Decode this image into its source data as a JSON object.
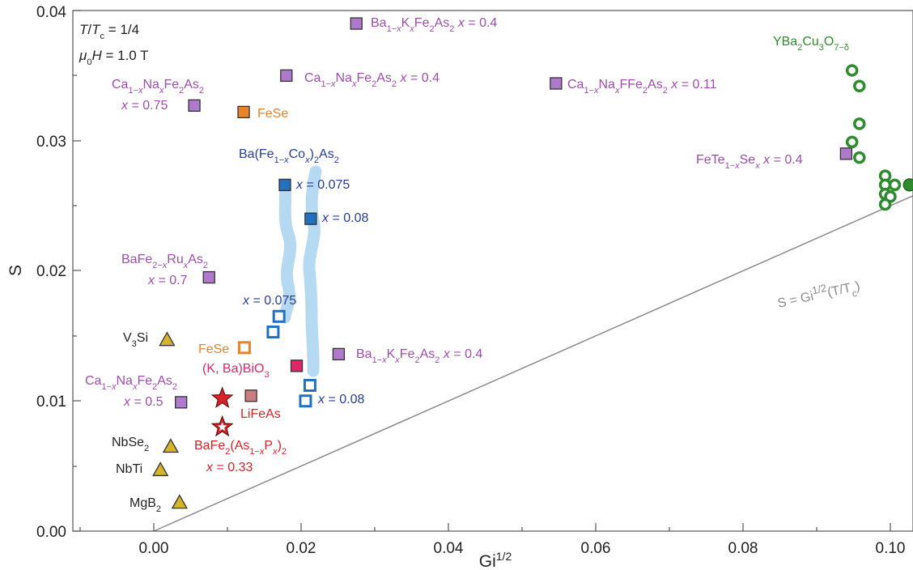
{
  "chart_data": {
    "type": "scatter",
    "xlabel": "Gi^1/2",
    "ylabel": "S",
    "xlim": [
      -0.011,
      0.104
    ],
    "ylim": [
      0.0,
      0.04
    ],
    "x_ticks": [
      0.0,
      0.02,
      0.04,
      0.06,
      0.08,
      0.1
    ],
    "x_tick_labels": [
      "0.00",
      "0.02",
      "0.04",
      "0.06",
      "0.08",
      "0.10"
    ],
    "y_ticks": [
      0.0,
      0.01,
      0.02,
      0.03,
      0.04
    ],
    "y_tick_labels": [
      "0.00",
      "0.01",
      "0.02",
      "0.03",
      "0.04"
    ],
    "grid": false,
    "conditions": [
      "T/Tc = 1/4",
      "μ0H = 1.0 T"
    ],
    "reference_line": {
      "label": "S = Gi^1/2(T/Tc)",
      "x": [
        0.0,
        0.104
      ],
      "y": [
        0.0,
        0.026
      ],
      "color": "#8a8a8a"
    },
    "colors": {
      "purple": "#b07acc",
      "orange": "#e8832a",
      "blue": "#2370c0",
      "red": "#d8222a",
      "green": "#2e8b2e",
      "yellow": "#d4b42a",
      "pink": "#e0256a",
      "salmon": "#c97f80",
      "band": "#a8d3ee"
    },
    "series": [
      {
        "name": "Ba1-xKxFe2As2 x = 0.4",
        "marker": "square",
        "color": "#b07acc",
        "points": [
          {
            "x": 0.0275,
            "y": 0.039
          },
          {
            "x": 0.0251,
            "y": 0.0136
          }
        ]
      },
      {
        "name": "Ca1-xNaxFe2As2 x = 0.4",
        "marker": "square",
        "color": "#b07acc",
        "points": [
          {
            "x": 0.018,
            "y": 0.035
          }
        ]
      },
      {
        "name": "Ca1-xNaxFFe2As2 x = 0.11",
        "marker": "square",
        "color": "#b07acc",
        "points": [
          {
            "x": 0.0546,
            "y": 0.0344
          }
        ]
      },
      {
        "name": "Ca1-xNaxFe2As2 x = 0.75",
        "marker": "square",
        "color": "#b07acc",
        "points": [
          {
            "x": 0.0055,
            "y": 0.0327
          }
        ]
      },
      {
        "name": "FeSe",
        "marker": "square",
        "color": "#e8832a",
        "points": [
          {
            "x": 0.0122,
            "y": 0.0322
          }
        ]
      },
      {
        "name": "Ba(Fe1-xCox)2As2 x = 0.075",
        "marker": "square",
        "color": "#2370c0",
        "points": [
          {
            "x": 0.0178,
            "y": 0.0266
          }
        ]
      },
      {
        "name": "Ba(Fe1-xCox)2As2 x = 0.08",
        "marker": "square",
        "color": "#2370c0",
        "points": [
          {
            "x": 0.0213,
            "y": 0.024
          }
        ]
      },
      {
        "name": "BaFe2-xRuxAs2 x = 0.7",
        "marker": "square",
        "color": "#b07acc",
        "points": [
          {
            "x": 0.0075,
            "y": 0.0195
          }
        ]
      },
      {
        "name": "x = 0.075",
        "marker": "open-square",
        "color": "#2370c0",
        "points": [
          {
            "x": 0.017,
            "y": 0.0165
          },
          {
            "x": 0.0162,
            "y": 0.0153
          }
        ]
      },
      {
        "name": "x = 0.08",
        "marker": "open-square",
        "color": "#2370c0",
        "points": [
          {
            "x": 0.0212,
            "y": 0.0112
          },
          {
            "x": 0.0206,
            "y": 0.01
          }
        ]
      },
      {
        "name": "FeSe",
        "marker": "open-square",
        "color": "#e8832a",
        "points": [
          {
            "x": 0.0123,
            "y": 0.0141
          }
        ]
      },
      {
        "name": "(K, Ba)BiO3",
        "marker": "square",
        "color": "#e0256a",
        "points": [
          {
            "x": 0.0194,
            "y": 0.0127
          }
        ]
      },
      {
        "name": "Ca1-xNaxFe2As2 x = 0.5",
        "marker": "square",
        "color": "#b07acc",
        "points": [
          {
            "x": 0.0037,
            "y": 0.0099
          }
        ]
      },
      {
        "name": "V3Si",
        "marker": "triangle",
        "color": "#d4b42a",
        "points": [
          {
            "x": 0.0018,
            "y": 0.0147
          }
        ]
      },
      {
        "name": "LiFeAs",
        "marker": "star",
        "color": "#d8222a",
        "points": [
          {
            "x": 0.0093,
            "y": 0.0102
          }
        ]
      },
      {
        "name": "BaFe2(As1-xPx)2 x = 0.33",
        "marker": "open-star",
        "color": "#d8222a",
        "points": [
          {
            "x": 0.0093,
            "y": 0.008
          }
        ]
      },
      {
        "name": "",
        "marker": "square",
        "color": "#c97f80",
        "points": [
          {
            "x": 0.0132,
            "y": 0.0104
          }
        ]
      },
      {
        "name": "NbSe2",
        "marker": "triangle",
        "color": "#d4b42a",
        "points": [
          {
            "x": 0.0023,
            "y": 0.0065
          }
        ]
      },
      {
        "name": "NbTi",
        "marker": "triangle",
        "color": "#d4b42a",
        "points": [
          {
            "x": 0.0009,
            "y": 0.0047
          }
        ]
      },
      {
        "name": "MgB2",
        "marker": "triangle",
        "color": "#d4b42a",
        "points": [
          {
            "x": 0.0035,
            "y": 0.0022
          }
        ]
      },
      {
        "name": "FeTe1-xSex x = 0.4",
        "marker": "square",
        "color": "#b07acc",
        "points": [
          {
            "x": 0.094,
            "y": 0.029
          }
        ]
      },
      {
        "name": "YBa2Cu3O7-δ",
        "marker": "open-circle",
        "color": "#2e8b2e",
        "points": [
          {
            "x": 0.0948,
            "y": 0.0354
          },
          {
            "x": 0.0958,
            "y": 0.0342
          },
          {
            "x": 0.0958,
            "y": 0.0313
          },
          {
            "x": 0.0948,
            "y": 0.0299
          },
          {
            "x": 0.0958,
            "y": 0.0287
          },
          {
            "x": 0.0993,
            "y": 0.0273
          },
          {
            "x": 0.0993,
            "y": 0.0266
          },
          {
            "x": 0.1006,
            "y": 0.0266
          },
          {
            "x": 0.0993,
            "y": 0.0259
          },
          {
            "x": 0.1,
            "y": 0.0257
          },
          {
            "x": 0.0993,
            "y": 0.0251
          }
        ]
      },
      {
        "name": "",
        "marker": "circle",
        "color": "#2e8b2e",
        "points": [
          {
            "x": 0.1026,
            "y": 0.0266
          }
        ]
      }
    ]
  }
}
